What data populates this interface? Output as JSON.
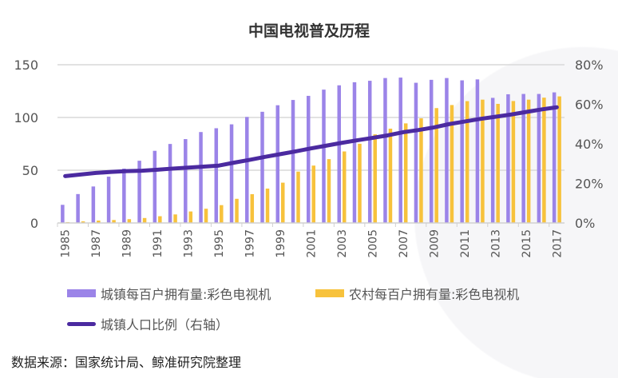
{
  "chart_data": {
    "type": "bar+line",
    "title": "中国电视普及历程",
    "categories": [
      "1985",
      "1986",
      "1987",
      "1988",
      "1989",
      "1990",
      "1991",
      "1992",
      "1993",
      "1994",
      "1995",
      "1996",
      "1997",
      "1998",
      "1999",
      "2000",
      "2001",
      "2002",
      "2003",
      "2004",
      "2005",
      "2006",
      "2007",
      "2008",
      "2009",
      "2010",
      "2011",
      "2012",
      "2013",
      "2014",
      "2015",
      "2016",
      "2017"
    ],
    "xtick_labels": [
      "1985",
      "1987",
      "1989",
      "1991",
      "1993",
      "1995",
      "1997",
      "1999",
      "2001",
      "2003",
      "2005",
      "2007",
      "2009",
      "2011",
      "2013",
      "2015",
      "2017"
    ],
    "y_left": {
      "range": [
        0,
        150
      ],
      "ticks": [
        "0",
        "50",
        "100",
        "150"
      ]
    },
    "y_right": {
      "range": [
        0,
        80
      ],
      "ticks": [
        "0%",
        "20%",
        "40%",
        "60%",
        "80%"
      ]
    },
    "grid": true,
    "legend_position": "bottom",
    "series": [
      {
        "name": "城镇每百户拥有量:彩色电视机",
        "type": "bar",
        "axis": "left",
        "color": "#9b84e8",
        "values": [
          17.2,
          27.4,
          34.6,
          43.9,
          51.5,
          59.0,
          68.4,
          74.9,
          79.5,
          86.2,
          89.8,
          93.5,
          100.5,
          105.4,
          111.6,
          116.6,
          120.5,
          126.4,
          130.5,
          133.4,
          134.8,
          137.4,
          137.8,
          132.9,
          135.7,
          137.4,
          135.2,
          136.1,
          118.6,
          122.0,
          122.3,
          122.3,
          123.8
        ]
      },
      {
        "name": "农村每百户拥有量:彩色电视机",
        "type": "bar",
        "axis": "left",
        "color": "#f7c23c",
        "values": [
          0.8,
          1.5,
          2.3,
          2.8,
          3.6,
          4.7,
          6.4,
          8.1,
          10.9,
          13.5,
          16.9,
          22.9,
          27.3,
          32.6,
          38.2,
          48.7,
          54.4,
          60.5,
          67.8,
          75.1,
          84.0,
          89.4,
          94.4,
          99.2,
          108.9,
          111.8,
          115.5,
          116.9,
          112.9,
          115.6,
          116.9,
          118.8,
          120.0
        ]
      },
      {
        "name": "城镇人口比例（右轴）",
        "type": "line",
        "axis": "right",
        "color": "#4b2aa0",
        "values": [
          23.7,
          24.5,
          25.3,
          25.8,
          26.2,
          26.4,
          26.9,
          27.5,
          28.0,
          28.5,
          29.0,
          30.5,
          31.9,
          33.4,
          34.8,
          36.2,
          37.7,
          39.1,
          40.5,
          41.8,
          43.0,
          44.3,
          45.9,
          47.0,
          48.3,
          50.0,
          51.3,
          52.6,
          53.7,
          54.8,
          56.1,
          57.4,
          58.5
        ]
      }
    ]
  },
  "source": "数据来源：国家统计局、鲸准研究院整理"
}
